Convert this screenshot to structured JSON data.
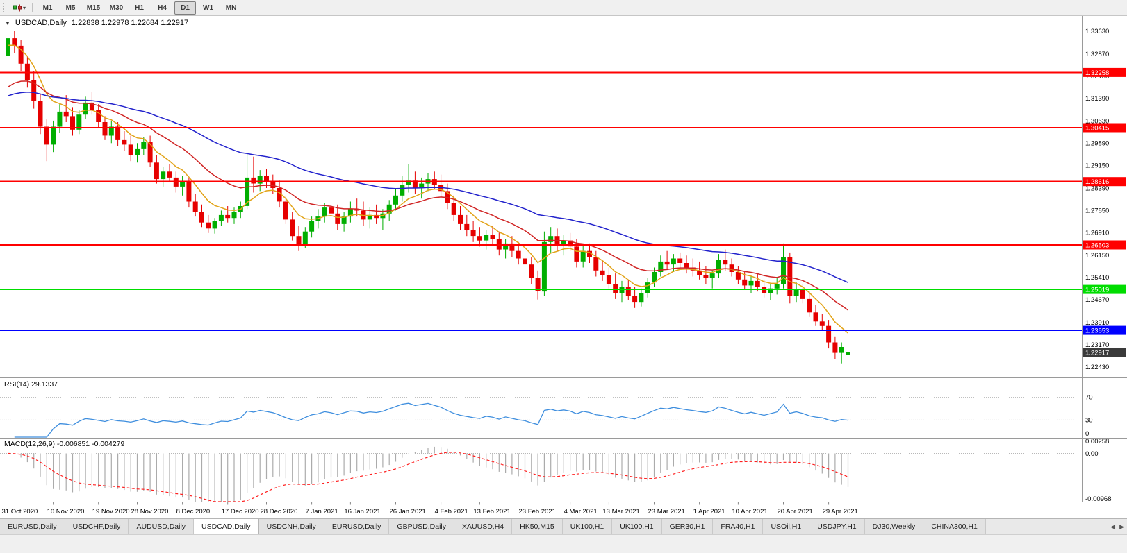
{
  "toolbar": {
    "timeframes": [
      "M1",
      "M5",
      "M15",
      "M30",
      "H1",
      "H4",
      "D1",
      "W1",
      "MN"
    ],
    "active_timeframe": "D1",
    "dropdown_caret": "▾"
  },
  "chart": {
    "window_marker": "▼",
    "symbol_title": "USDCAD,Daily",
    "ohlc_text": "1.22838 1.22978 1.22684 1.22917"
  },
  "chart_data": {
    "type": "candlestick",
    "symbol": "USDCAD",
    "period": "Daily",
    "current_bar": {
      "open": 1.22838,
      "high": 1.22978,
      "low": 1.22684,
      "close": 1.22917
    },
    "price_range": {
      "top": 1.3405,
      "bottom": 1.2215
    },
    "price_axis_labels": [
      "1.33630",
      "1.32870",
      "1.32130",
      "1.31390",
      "1.30630",
      "1.29890",
      "1.29150",
      "1.28390",
      "1.27650",
      "1.26910",
      "1.26150",
      "1.25410",
      "1.24670",
      "1.23910",
      "1.23170",
      "1.22430"
    ],
    "x_labels": [
      {
        "text": "31 Oct 2020",
        "bar": 0
      },
      {
        "text": "10 Nov 2020",
        "bar": 7
      },
      {
        "text": "19 Nov 2020",
        "bar": 14
      },
      {
        "text": "28 Nov 2020",
        "bar": 20
      },
      {
        "text": "8 Dec 2020",
        "bar": 27
      },
      {
        "text": "17 Dec 2020",
        "bar": 34
      },
      {
        "text": "28 Dec 2020",
        "bar": 40
      },
      {
        "text": "7 Jan 2021",
        "bar": 47
      },
      {
        "text": "16 Jan 2021",
        "bar": 53
      },
      {
        "text": "26 Jan 2021",
        "bar": 60
      },
      {
        "text": "4 Feb 2021",
        "bar": 67
      },
      {
        "text": "13 Feb 2021",
        "bar": 73
      },
      {
        "text": "23 Feb 2021",
        "bar": 80
      },
      {
        "text": "4 Mar 2021",
        "bar": 87
      },
      {
        "text": "13 Mar 2021",
        "bar": 93
      },
      {
        "text": "23 Mar 2021",
        "bar": 100
      },
      {
        "text": "1 Apr 2021",
        "bar": 107
      },
      {
        "text": "10 Apr 2021",
        "bar": 113
      },
      {
        "text": "20 Apr 2021",
        "bar": 120
      },
      {
        "text": "29 Apr 2021",
        "bar": 127
      }
    ],
    "candles": [
      [
        1.328,
        1.336,
        1.3255,
        1.334
      ],
      [
        1.334,
        1.3365,
        1.329,
        1.3315
      ],
      [
        1.3315,
        1.3335,
        1.323,
        1.3255
      ],
      [
        1.3255,
        1.328,
        1.3175,
        1.32
      ],
      [
        1.32,
        1.323,
        1.3105,
        1.313
      ],
      [
        1.313,
        1.3155,
        1.302,
        1.3045
      ],
      [
        1.3045,
        1.307,
        1.293,
        1.2985
      ],
      [
        1.2985,
        1.3065,
        1.296,
        1.3045
      ],
      [
        1.3045,
        1.312,
        1.3025,
        1.3095
      ],
      [
        1.3095,
        1.315,
        1.306,
        1.308
      ],
      [
        1.308,
        1.311,
        1.3015,
        1.3035
      ],
      [
        1.3035,
        1.31,
        1.302,
        1.3085
      ],
      [
        1.3085,
        1.3145,
        1.307,
        1.3125
      ],
      [
        1.3125,
        1.316,
        1.3085,
        1.31
      ],
      [
        1.31,
        1.312,
        1.304,
        1.306
      ],
      [
        1.306,
        1.308,
        1.3,
        1.3015
      ],
      [
        1.3015,
        1.3065,
        1.299,
        1.3045
      ],
      [
        1.3045,
        1.306,
        1.298,
        1.3
      ],
      [
        1.3,
        1.303,
        1.2965,
        1.2985
      ],
      [
        1.2985,
        1.3015,
        1.293,
        1.295
      ],
      [
        1.295,
        1.299,
        1.2925,
        1.297
      ],
      [
        1.297,
        1.301,
        1.295,
        1.2995
      ],
      [
        1.2995,
        1.3015,
        1.291,
        1.2925
      ],
      [
        1.2925,
        1.295,
        1.2855,
        1.287
      ],
      [
        1.287,
        1.291,
        1.2845,
        1.2895
      ],
      [
        1.2895,
        1.292,
        1.286,
        1.2875
      ],
      [
        1.2875,
        1.2895,
        1.2825,
        1.2845
      ],
      [
        1.2845,
        1.288,
        1.2815,
        1.286
      ],
      [
        1.286,
        1.2875,
        1.2775,
        1.2795
      ],
      [
        1.2795,
        1.282,
        1.2745,
        1.276
      ],
      [
        1.276,
        1.2785,
        1.271,
        1.2725
      ],
      [
        1.2725,
        1.275,
        1.269,
        1.2705
      ],
      [
        1.2705,
        1.274,
        1.2688,
        1.273
      ],
      [
        1.273,
        1.2765,
        1.2715,
        1.275
      ],
      [
        1.275,
        1.278,
        1.2725,
        1.274
      ],
      [
        1.274,
        1.2775,
        1.272,
        1.276
      ],
      [
        1.276,
        1.2795,
        1.274,
        1.278
      ],
      [
        1.278,
        1.2955,
        1.277,
        1.2875
      ],
      [
        1.2875,
        1.2945,
        1.2825,
        1.2855
      ],
      [
        1.2855,
        1.29,
        1.283,
        1.288
      ],
      [
        1.288,
        1.2905,
        1.284,
        1.286
      ],
      [
        1.286,
        1.2885,
        1.282,
        1.284
      ],
      [
        1.284,
        1.2865,
        1.2775,
        1.2795
      ],
      [
        1.2795,
        1.2815,
        1.272,
        1.2735
      ],
      [
        1.2735,
        1.276,
        1.2665,
        1.268
      ],
      [
        1.268,
        1.2715,
        1.263,
        1.2655
      ],
      [
        1.2655,
        1.271,
        1.264,
        1.2695
      ],
      [
        1.2695,
        1.2745,
        1.2675,
        1.273
      ],
      [
        1.273,
        1.277,
        1.2705,
        1.2745
      ],
      [
        1.2745,
        1.279,
        1.2725,
        1.2775
      ],
      [
        1.2775,
        1.2805,
        1.2735,
        1.2755
      ],
      [
        1.2755,
        1.2785,
        1.27,
        1.272
      ],
      [
        1.272,
        1.276,
        1.2695,
        1.2745
      ],
      [
        1.2745,
        1.2795,
        1.2725,
        1.277
      ],
      [
        1.277,
        1.2805,
        1.2745,
        1.2765
      ],
      [
        1.2765,
        1.2795,
        1.2715,
        1.2735
      ],
      [
        1.2735,
        1.2775,
        1.2705,
        1.275
      ],
      [
        1.275,
        1.2785,
        1.272,
        1.274
      ],
      [
        1.274,
        1.277,
        1.27,
        1.2755
      ],
      [
        1.2755,
        1.28,
        1.273,
        1.2785
      ],
      [
        1.2785,
        1.284,
        1.2765,
        1.2815
      ],
      [
        1.2815,
        1.288,
        1.2795,
        1.285
      ],
      [
        1.285,
        1.292,
        1.2825,
        1.2865
      ],
      [
        1.2865,
        1.2895,
        1.282,
        1.284
      ],
      [
        1.284,
        1.2875,
        1.2805,
        1.2855
      ],
      [
        1.2855,
        1.289,
        1.283,
        1.287
      ],
      [
        1.287,
        1.2895,
        1.2835,
        1.285
      ],
      [
        1.285,
        1.2885,
        1.281,
        1.283
      ],
      [
        1.283,
        1.2855,
        1.277,
        1.279
      ],
      [
        1.279,
        1.2815,
        1.273,
        1.275
      ],
      [
        1.275,
        1.278,
        1.27,
        1.272
      ],
      [
        1.272,
        1.275,
        1.268,
        1.27
      ],
      [
        1.27,
        1.273,
        1.266,
        1.268
      ],
      [
        1.268,
        1.271,
        1.2645,
        1.2665
      ],
      [
        1.2665,
        1.27,
        1.2635,
        1.2685
      ],
      [
        1.2685,
        1.2715,
        1.265,
        1.267
      ],
      [
        1.267,
        1.2695,
        1.2615,
        1.2635
      ],
      [
        1.2635,
        1.267,
        1.2605,
        1.2655
      ],
      [
        1.2655,
        1.268,
        1.261,
        1.263
      ],
      [
        1.263,
        1.266,
        1.2585,
        1.2605
      ],
      [
        1.2605,
        1.264,
        1.2565,
        1.2585
      ],
      [
        1.2585,
        1.261,
        1.252,
        1.254
      ],
      [
        1.254,
        1.2565,
        1.2468,
        1.2495
      ],
      [
        1.2495,
        1.2695,
        1.248,
        1.266
      ],
      [
        1.266,
        1.271,
        1.2625,
        1.268
      ],
      [
        1.268,
        1.2705,
        1.263,
        1.265
      ],
      [
        1.265,
        1.2685,
        1.2615,
        1.2665
      ],
      [
        1.2665,
        1.269,
        1.263,
        1.2645
      ],
      [
        1.2645,
        1.267,
        1.2575,
        1.2595
      ],
      [
        1.2595,
        1.265,
        1.2575,
        1.263
      ],
      [
        1.263,
        1.2655,
        1.259,
        1.261
      ],
      [
        1.261,
        1.263,
        1.2545,
        1.2565
      ],
      [
        1.2565,
        1.26,
        1.253,
        1.255
      ],
      [
        1.255,
        1.2575,
        1.2505,
        1.252
      ],
      [
        1.252,
        1.2555,
        1.247,
        1.249
      ],
      [
        1.249,
        1.253,
        1.246,
        1.251
      ],
      [
        1.251,
        1.2535,
        1.2465,
        1.248
      ],
      [
        1.248,
        1.251,
        1.244,
        1.246
      ],
      [
        1.246,
        1.2505,
        1.2445,
        1.249
      ],
      [
        1.249,
        1.254,
        1.2475,
        1.2525
      ],
      [
        1.2525,
        1.2575,
        1.251,
        1.256
      ],
      [
        1.256,
        1.2615,
        1.2545,
        1.2595
      ],
      [
        1.2595,
        1.263,
        1.257,
        1.2585
      ],
      [
        1.2585,
        1.262,
        1.256,
        1.2605
      ],
      [
        1.2605,
        1.2625,
        1.257,
        1.259
      ],
      [
        1.259,
        1.2615,
        1.2555,
        1.2575
      ],
      [
        1.2575,
        1.2605,
        1.2545,
        1.2565
      ],
      [
        1.2565,
        1.2595,
        1.2535,
        1.255
      ],
      [
        1.255,
        1.258,
        1.252,
        1.254
      ],
      [
        1.254,
        1.2565,
        1.2505,
        1.2555
      ],
      [
        1.2555,
        1.262,
        1.254,
        1.26
      ],
      [
        1.26,
        1.2635,
        1.2565,
        1.2585
      ],
      [
        1.2585,
        1.2605,
        1.2545,
        1.256
      ],
      [
        1.256,
        1.258,
        1.252,
        1.2535
      ],
      [
        1.2535,
        1.256,
        1.25,
        1.2515
      ],
      [
        1.2515,
        1.2545,
        1.249,
        1.253
      ],
      [
        1.253,
        1.2555,
        1.2495,
        1.251
      ],
      [
        1.251,
        1.2535,
        1.2475,
        1.249
      ],
      [
        1.249,
        1.252,
        1.2465,
        1.2505
      ],
      [
        1.2505,
        1.254,
        1.2485,
        1.252
      ],
      [
        1.252,
        1.2655,
        1.2505,
        1.261
      ],
      [
        1.261,
        1.2625,
        1.2455,
        1.248
      ],
      [
        1.248,
        1.2525,
        1.246,
        1.25
      ],
      [
        1.25,
        1.252,
        1.2455,
        1.247
      ],
      [
        1.247,
        1.2495,
        1.241,
        1.2425
      ],
      [
        1.2425,
        1.245,
        1.238,
        1.2395
      ],
      [
        1.2395,
        1.242,
        1.2365,
        1.238
      ],
      [
        1.238,
        1.24,
        1.2305,
        1.2325
      ],
      [
        1.2325,
        1.2345,
        1.227,
        1.229
      ],
      [
        1.229,
        1.2325,
        1.2255,
        1.231
      ],
      [
        1.22838,
        1.22978,
        1.22684,
        1.22917
      ]
    ],
    "colors": {
      "background": "#FFFFFF",
      "candle_up": "#00AE00",
      "candle_down": "#E60000",
      "ma_fast": "#E2A317",
      "ma_mid": "#D02424",
      "ma_slow": "#2222CC",
      "rsi_line": "#3E8EDE",
      "macd_hist": "#ABABAB",
      "macd_signal": "#FF2020",
      "level_dotted": "#B8B8B8"
    },
    "moving_averages": [
      {
        "period": 8,
        "color": "#E2A317",
        "seed": 1.331
      },
      {
        "period": 20,
        "color": "#D02424",
        "seed": 1.316
      },
      {
        "period": 50,
        "color": "#2222CC",
        "seed": 1.314
      }
    ],
    "hlines": [
      {
        "price": 1.32258,
        "label": "1.32258",
        "color": "#FF0000"
      },
      {
        "price": 1.30415,
        "label": "1.30415",
        "color": "#FF0000"
      },
      {
        "price": 1.28616,
        "label": "1.28616",
        "color": "#FF0000"
      },
      {
        "price": 1.26503,
        "label": "1.26503",
        "color": "#FF0000"
      },
      {
        "price": 1.25019,
        "label": "1.25019",
        "color": "#00DD00"
      },
      {
        "price": 1.23653,
        "label": "1.23653",
        "color": "#0000FF"
      }
    ],
    "current_price_tag": {
      "price": 1.22917,
      "label": "1.22917",
      "color": "#3A3A3A"
    },
    "rsi": {
      "label": "RSI(14) 29.1337",
      "period": 14,
      "value": 29.1337,
      "levels": [
        70,
        30
      ],
      "axis_labels": [
        "70",
        "30",
        "0"
      ]
    },
    "macd": {
      "label": "MACD(12,26,9) -0.006851 -0.004279",
      "fast": 12,
      "slow": 26,
      "signal_period": 9,
      "value": -0.006851,
      "signal_value": -0.004279,
      "axis_labels": [
        "0.00258",
        "0.00",
        "-0.00968"
      ],
      "range": {
        "top": 0.00258,
        "bottom": -0.00968
      }
    }
  },
  "tabs": {
    "items": [
      "EURUSD,Daily",
      "USDCHF,Daily",
      "AUDUSD,Daily",
      "USDCAD,Daily",
      "USDCNH,Daily",
      "EURUSD,Daily",
      "GBPUSD,Daily",
      "XAUUSD,H4",
      "HK50,M15",
      "UK100,H1",
      "UK100,H1",
      "GER30,H1",
      "FRA40,H1",
      "USOil,H1",
      "USDJPY,H1",
      "DJ30,Weekly",
      "CHINA300,H1"
    ],
    "active_index": 3,
    "scroll_left": "◀",
    "scroll_right": "▶"
  }
}
